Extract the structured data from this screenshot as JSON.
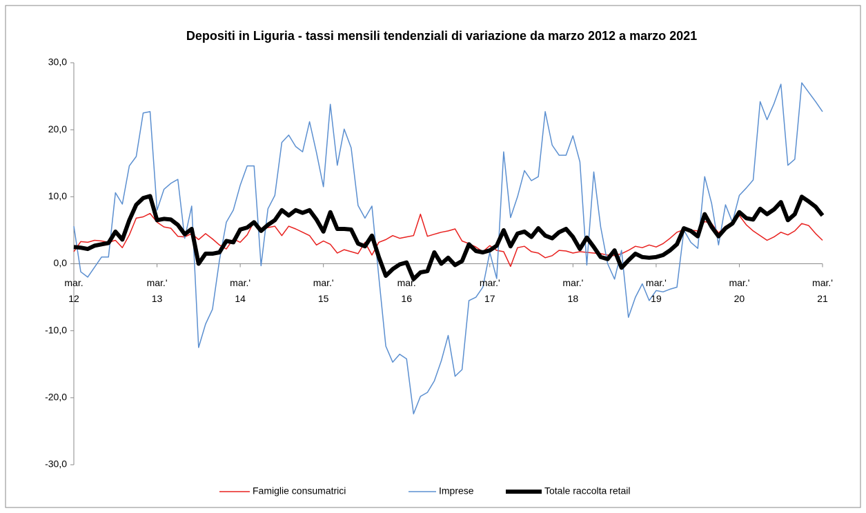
{
  "chart_data": {
    "type": "line",
    "title": "Depositi in Liguria - tassi mensili tendenziali di variazione da marzo 2012  a marzo 2021",
    "categories": [
      "mar.\n12",
      null,
      null,
      null,
      null,
      null,
      null,
      null,
      null,
      null,
      null,
      null,
      "mar.'\n13",
      null,
      null,
      null,
      null,
      null,
      null,
      null,
      null,
      null,
      null,
      null,
      "mar.'\n14",
      null,
      null,
      null,
      null,
      null,
      null,
      null,
      null,
      null,
      null,
      null,
      "mar.'\n15",
      null,
      null,
      null,
      null,
      null,
      null,
      null,
      null,
      null,
      null,
      null,
      "mar.\n16",
      null,
      null,
      null,
      null,
      null,
      null,
      null,
      null,
      null,
      null,
      null,
      "mar.'\n17",
      null,
      null,
      null,
      null,
      null,
      null,
      null,
      null,
      null,
      null,
      null,
      "mar.'\n18",
      null,
      null,
      null,
      null,
      null,
      null,
      null,
      null,
      null,
      null,
      null,
      "mar.'\n19",
      null,
      null,
      null,
      null,
      null,
      null,
      null,
      null,
      null,
      null,
      null,
      "mar.'\n20",
      null,
      null,
      null,
      null,
      null,
      null,
      null,
      null,
      null,
      null,
      null,
      "mar.'\n21"
    ],
    "series": [
      {
        "name": "Famiglie consumatrici",
        "color": "#e8201e",
        "width": 1.5,
        "values": [
          1.8,
          3.3,
          3.2,
          3.5,
          3.4,
          3.2,
          3.5,
          2.4,
          4.3,
          6.8,
          7.0,
          7.5,
          6.2,
          5.5,
          5.3,
          4.1,
          4.0,
          4.5,
          3.6,
          4.5,
          3.7,
          2.8,
          2.2,
          3.7,
          3.2,
          4.3,
          6.3,
          5.3,
          5.4,
          5.6,
          4.2,
          5.6,
          5.2,
          4.7,
          4.2,
          2.8,
          3.4,
          2.9,
          1.6,
          2.1,
          1.8,
          1.5,
          3.2,
          1.3,
          3.2,
          3.6,
          4.2,
          3.8,
          4.0,
          4.2,
          7.4,
          4.1,
          4.4,
          4.7,
          4.9,
          5.2,
          3.4,
          3.0,
          2.5,
          1.8,
          2.7,
          2.0,
          1.8,
          -0.4,
          2.4,
          2.6,
          1.8,
          1.6,
          0.9,
          1.2,
          2.0,
          1.9,
          1.6,
          1.8,
          1.7,
          1.6,
          1.5,
          1.3,
          1.2,
          1.5,
          2.0,
          2.6,
          2.4,
          2.8,
          2.5,
          3.0,
          3.8,
          4.7,
          5.1,
          5.0,
          4.9,
          6.3,
          6.0,
          4.6,
          5.6,
          6.0,
          7.2,
          5.8,
          4.9,
          4.2,
          3.5,
          4.0,
          4.7,
          4.3,
          4.9,
          6.0,
          5.7,
          4.5,
          3.5
        ]
      },
      {
        "name": "Imprese",
        "color": "#5b8fd0",
        "width": 1.5,
        "values": [
          5.6,
          -1.2,
          -2.0,
          -0.5,
          1.0,
          1.0,
          10.6,
          8.9,
          14.6,
          16.0,
          22.5,
          22.7,
          8.0,
          11.1,
          12.0,
          12.6,
          3.8,
          8.6,
          -12.5,
          -9.0,
          -6.8,
          0.5,
          6.2,
          8.0,
          11.7,
          14.6,
          14.6,
          -0.3,
          8.2,
          10.2,
          18.1,
          19.2,
          17.5,
          16.7,
          21.2,
          16.6,
          11.5,
          23.8,
          14.7,
          20.1,
          17.3,
          8.7,
          6.8,
          8.6,
          -2.0,
          -12.3,
          -14.7,
          -13.5,
          -14.2,
          -22.4,
          -19.8,
          -19.2,
          -17.5,
          -14.5,
          -10.7,
          -16.8,
          -15.8,
          -5.5,
          -5.0,
          -3.5,
          1.7,
          -2.2,
          16.7,
          6.9,
          10.0,
          13.9,
          12.4,
          13.0,
          22.7,
          17.7,
          16.2,
          16.2,
          19.1,
          15.2,
          -0.2,
          13.7,
          5.5,
          0.0,
          -2.3,
          2.0,
          -8.0,
          -5.0,
          -3.0,
          -5.5,
          -4.0,
          -4.2,
          -3.8,
          -3.5,
          5.0,
          3.2,
          2.3,
          13.0,
          9.0,
          2.8,
          8.8,
          6.2,
          10.2,
          11.3,
          12.5,
          24.2,
          21.5,
          23.9,
          26.8,
          14.7,
          15.6,
          27.0,
          25.6,
          24.2,
          22.7
        ]
      },
      {
        "name": "Totale raccolta retail",
        "color": "#000000",
        "width": 6,
        "values": [
          2.5,
          2.4,
          2.2,
          2.7,
          2.9,
          3.1,
          4.8,
          3.6,
          6.5,
          8.8,
          9.8,
          10.1,
          6.5,
          6.7,
          6.6,
          5.8,
          4.4,
          5.2,
          0.0,
          1.5,
          1.5,
          1.7,
          3.4,
          3.2,
          5.1,
          5.4,
          6.2,
          4.9,
          5.8,
          6.5,
          8.0,
          7.2,
          8.0,
          7.6,
          8.0,
          6.6,
          4.8,
          7.7,
          5.2,
          5.2,
          5.1,
          3.0,
          2.6,
          4.2,
          1.0,
          -1.8,
          -0.8,
          -0.1,
          0.2,
          -2.3,
          -1.3,
          -1.1,
          1.7,
          0.0,
          0.9,
          -0.2,
          0.4,
          2.9,
          1.9,
          1.7,
          2.0,
          2.7,
          5.0,
          2.6,
          4.5,
          4.8,
          4.0,
          5.3,
          4.2,
          3.8,
          4.7,
          5.2,
          4.0,
          2.2,
          3.9,
          2.5,
          1.0,
          0.7,
          2.0,
          -0.6,
          0.5,
          1.5,
          1.0,
          0.9,
          1.0,
          1.3,
          2.0,
          2.9,
          5.3,
          4.9,
          4.1,
          7.4,
          5.5,
          4.1,
          5.3,
          6.0,
          7.7,
          6.8,
          6.6,
          8.2,
          7.4,
          8.1,
          9.2,
          6.5,
          7.4,
          10.0,
          9.3,
          8.5,
          7.2
        ]
      }
    ],
    "ylim": [
      -30,
      30
    ],
    "yticks": [
      {
        "value": -30,
        "label": "-30,0"
      },
      {
        "value": -20,
        "label": "-20,0"
      },
      {
        "value": -10,
        "label": "-10,0"
      },
      {
        "value": 0,
        "label": "0,0"
      },
      {
        "value": 10,
        "label": "10,0"
      },
      {
        "value": 20,
        "label": "20,0"
      },
      {
        "value": 30,
        "label": "30,0"
      }
    ],
    "grid": false,
    "legend": "bottom"
  }
}
